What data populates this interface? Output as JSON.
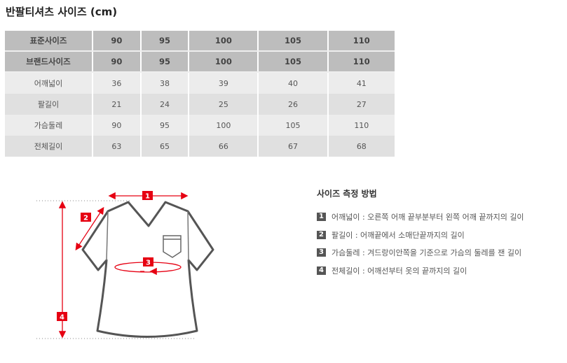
{
  "title": "반팔티셔츠 사이즈 (cm)",
  "table": {
    "header_rows": [
      {
        "label": "표준사이즈",
        "values": [
          "90",
          "95",
          "100",
          "105",
          "110"
        ]
      },
      {
        "label": "브랜드사이즈",
        "values": [
          "90",
          "95",
          "100",
          "105",
          "110"
        ]
      }
    ],
    "rows": [
      {
        "label": "어깨넓이",
        "values": [
          "36",
          "38",
          "39",
          "40",
          "41"
        ]
      },
      {
        "label": "팔길이",
        "values": [
          "21",
          "24",
          "25",
          "26",
          "27"
        ]
      },
      {
        "label": "가슴둘레",
        "values": [
          "90",
          "95",
          "100",
          "105",
          "110"
        ]
      },
      {
        "label": "전체길이",
        "values": [
          "63",
          "65",
          "66",
          "67",
          "68"
        ]
      }
    ]
  },
  "guide": {
    "title": "사이즈 측정 방법",
    "items": [
      {
        "num": "1",
        "text": "어깨넓이 : 오른쪽 어깨 끝부분부터 왼쪽 어깨 끝까지의 길이"
      },
      {
        "num": "2",
        "text": "팔길이 : 어깨끝에서 소매단끝까지의 길이"
      },
      {
        "num": "3",
        "text": "가슴둘레 : 겨드랑이안쪽을 기준으로 가슴의 둘레를 잰 길이"
      },
      {
        "num": "4",
        "text": "전체길이 : 어깨선부터 옷의 끝까지의 길이"
      }
    ]
  },
  "diagram": {
    "labels": [
      "1",
      "2",
      "3",
      "4"
    ]
  },
  "colors": {
    "accent": "#e60012",
    "header": "#bdbdbd"
  }
}
